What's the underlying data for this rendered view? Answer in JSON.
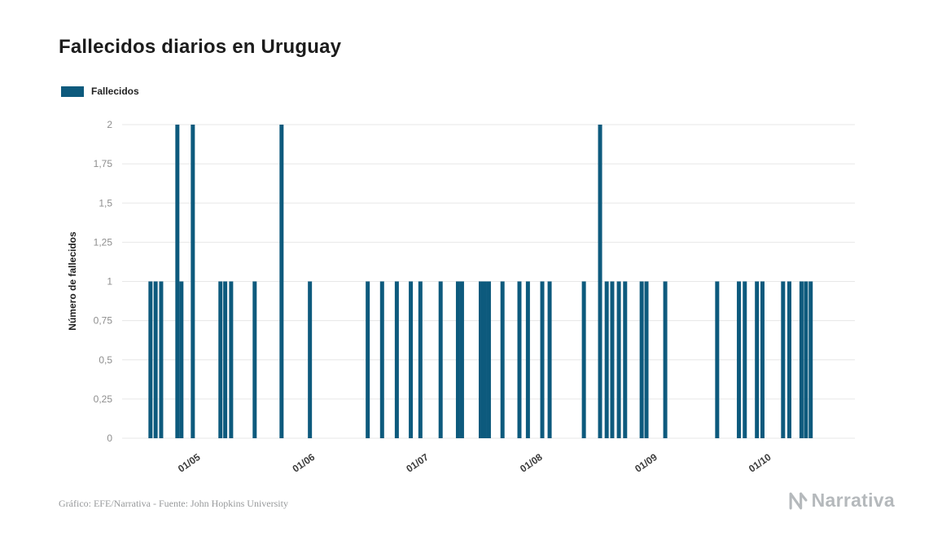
{
  "page": {
    "title": "Fallecidos diarios en Uruguay",
    "footer": "Gráfico: EFE/Narrativa - Fuente: John Hopkins University",
    "brand": "Narrativa"
  },
  "legend": {
    "label": "Fallecidos",
    "color": "#0d5a7d"
  },
  "chart_data": {
    "type": "bar",
    "title": "Fallecidos diarios en Uruguay",
    "xlabel": "",
    "ylabel": "Número de fallecidos",
    "ylim": [
      0,
      2
    ],
    "grid": true,
    "legend_position": "top-left",
    "y_ticks": [
      {
        "value": 0,
        "label": "0"
      },
      {
        "value": 0.25,
        "label": "0,25"
      },
      {
        "value": 0.5,
        "label": "0,5"
      },
      {
        "value": 0.75,
        "label": "0,75"
      },
      {
        "value": 1,
        "label": "1"
      },
      {
        "value": 1.25,
        "label": "1,25"
      },
      {
        "value": 1.5,
        "label": "1,5"
      },
      {
        "value": 1.75,
        "label": "1,75"
      },
      {
        "value": 2,
        "label": "2"
      }
    ],
    "x_domain": [
      0,
      199
    ],
    "x_ticks": [
      {
        "pos": 18.1,
        "label": "01/05"
      },
      {
        "pos": 49.2,
        "label": "01/06"
      },
      {
        "pos": 80.1,
        "label": "01/07"
      },
      {
        "pos": 111.0,
        "label": "01/08"
      },
      {
        "pos": 142.2,
        "label": "01/09"
      },
      {
        "pos": 173.1,
        "label": "01/10"
      }
    ],
    "series": [
      {
        "name": "Fallecidos",
        "color": "#0d5a7d",
        "bars": [
          [
            7.7,
            1
          ],
          [
            9.1,
            1
          ],
          [
            10.6,
            1
          ],
          [
            15,
            2
          ],
          [
            16.1,
            1
          ],
          [
            19.2,
            2
          ],
          [
            26.7,
            1
          ],
          [
            28,
            1
          ],
          [
            29.6,
            1
          ],
          [
            36,
            1
          ],
          [
            43.3,
            2
          ],
          [
            51,
            1
          ],
          [
            66.7,
            1
          ],
          [
            70.6,
            1
          ],
          [
            74.6,
            1
          ],
          [
            78.4,
            1
          ],
          [
            81,
            1
          ],
          [
            86.5,
            1
          ],
          [
            91.2,
            1
          ],
          [
            92.3,
            1
          ],
          [
            97.4,
            1
          ],
          [
            98.5,
            1
          ],
          [
            99.6,
            1
          ],
          [
            103.3,
            1
          ],
          [
            107.9,
            1
          ],
          [
            110.2,
            1
          ],
          [
            114.1,
            1
          ],
          [
            116.1,
            1
          ],
          [
            125.4,
            1
          ],
          [
            129.8,
            2
          ],
          [
            131.6,
            1
          ],
          [
            133.1,
            1
          ],
          [
            134.9,
            1
          ],
          [
            136.6,
            1
          ],
          [
            141.1,
            1
          ],
          [
            142.4,
            1
          ],
          [
            147.5,
            1
          ],
          [
            161.6,
            1
          ],
          [
            167.5,
            1
          ],
          [
            169.1,
            1
          ],
          [
            172.4,
            1
          ],
          [
            173.9,
            1
          ],
          [
            179.5,
            1
          ],
          [
            181.2,
            1
          ],
          [
            184.5,
            1
          ],
          [
            185.7,
            1
          ],
          [
            187,
            1
          ]
        ]
      }
    ]
  }
}
